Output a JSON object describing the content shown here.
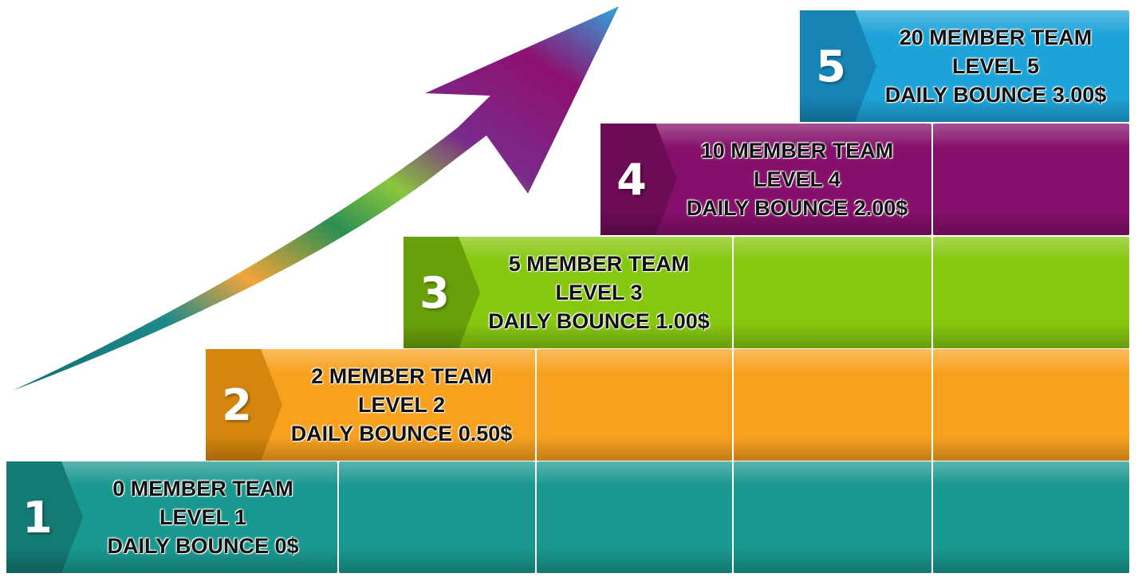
{
  "steps": [
    {
      "number": "1",
      "line1": "0 MEMBER TEAM",
      "line2": "LEVEL 1",
      "line3": "DAILY BOUNCE 0$",
      "color": "#19988f",
      "tab_color": "#147a74"
    },
    {
      "number": "2",
      "line1": "2 MEMBER TEAM",
      "line2": "LEVEL 2",
      "line3": "DAILY BOUNCE 0.50$",
      "color": "#f8a11e",
      "tab_color": "#d4860e"
    },
    {
      "number": "3",
      "line1": "5 MEMBER TEAM",
      "line2": "LEVEL 3",
      "line3": "DAILY BOUNCE 1.00$",
      "color": "#86c70f",
      "tab_color": "#69a00a"
    },
    {
      "number": "4",
      "line1": "10 MEMBER TEAM",
      "line2": "LEVEL 4",
      "line3": "DAILY BOUNCE 2.00$",
      "color": "#850f6a",
      "tab_color": "#6c0b56"
    },
    {
      "number": "5",
      "line1": "20 MEMBER TEAM",
      "line2": "LEVEL 5",
      "line3": "DAILY BOUNCE 3.00$",
      "color": "#1ea3d8",
      "tab_color": "#1685b5"
    }
  ],
  "arrow_icon": "growth-arrow-icon"
}
